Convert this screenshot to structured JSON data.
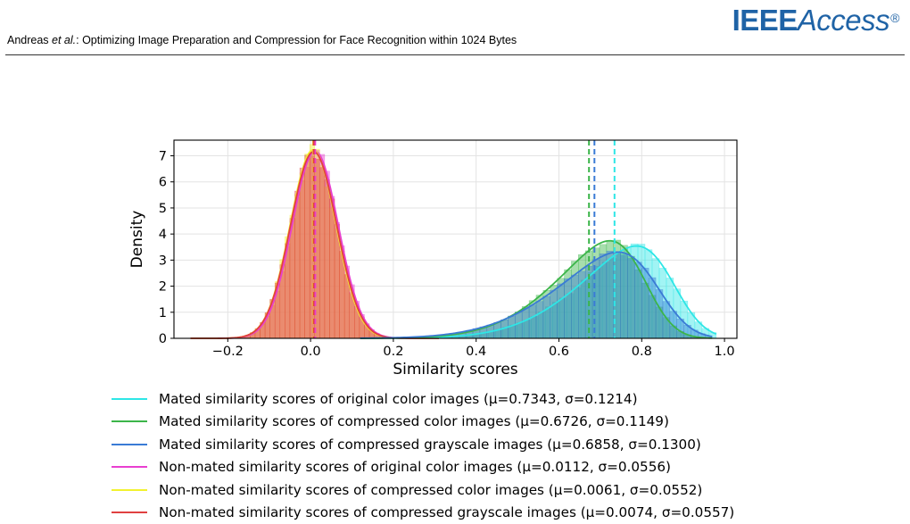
{
  "header": {
    "author": "Andreas ",
    "etal": "et al.",
    "title": ": Optimizing Image Preparation and Compression for Face Recognition within 1024 Bytes"
  },
  "logo": {
    "part1": "IEEE",
    "part2": "Access",
    "mark": "®",
    "color": "#1f63a6"
  },
  "chart_data": {
    "type": "histogram",
    "xlabel": "Similarity scores",
    "ylabel": "Density",
    "xlim": [
      -0.33,
      1.03
    ],
    "ylim": [
      0,
      7.6
    ],
    "xticks": [
      -0.2,
      0.0,
      0.2,
      0.4,
      0.6,
      0.8,
      1.0
    ],
    "xtick_labels": [
      "−0.2",
      "0.0",
      "0.2",
      "0.4",
      "0.6",
      "0.8",
      "1.0"
    ],
    "yticks": [
      0,
      1,
      2,
      3,
      4,
      5,
      6,
      7
    ],
    "ytick_labels": [
      "0",
      "1",
      "2",
      "3",
      "4",
      "5",
      "6",
      "7"
    ],
    "grid": true,
    "legend_position": "below",
    "series": [
      {
        "label": "Mated similarity scores of original color images (μ=0.7343, σ=0.1214)",
        "mean": 0.7343,
        "std": 0.1214,
        "color": "#2ee6e6",
        "kind": "mated",
        "range": [
          0.12,
          0.98
        ],
        "skew": -3.0
      },
      {
        "label": "Mated similarity scores of compressed color images (μ=0.6726, σ=0.1149)",
        "mean": 0.6726,
        "std": 0.1149,
        "color": "#3cb54a",
        "kind": "mated",
        "range": [
          0.12,
          0.97
        ],
        "skew": -3.0
      },
      {
        "label": "Mated similarity scores of compressed grayscale images (μ=0.6858, σ=0.1300)",
        "mean": 0.6858,
        "std": 0.13,
        "color": "#3a7bd5",
        "kind": "mated",
        "range": [
          0.12,
          0.97
        ],
        "skew": -3.0
      },
      {
        "label": "Non-mated similarity scores of original color images (μ=0.0112, σ=0.0556)",
        "mean": 0.0112,
        "std": 0.0556,
        "color": "#e83fd0",
        "kind": "nonmated",
        "range": [
          -0.29,
          0.31
        ],
        "skew": 0
      },
      {
        "label": "Non-mated similarity scores of compressed color images (μ=0.0061, σ=0.0552)",
        "mean": 0.0061,
        "std": 0.0552,
        "color": "#f2f230",
        "kind": "nonmated",
        "range": [
          -0.29,
          0.31
        ],
        "skew": 0
      },
      {
        "label": "Non-mated similarity scores of compressed grayscale images (μ=0.0074, σ=0.0557)",
        "mean": 0.0074,
        "std": 0.0557,
        "color": "#e04040",
        "kind": "nonmated",
        "range": [
          -0.29,
          0.31
        ],
        "skew": 0
      }
    ]
  }
}
